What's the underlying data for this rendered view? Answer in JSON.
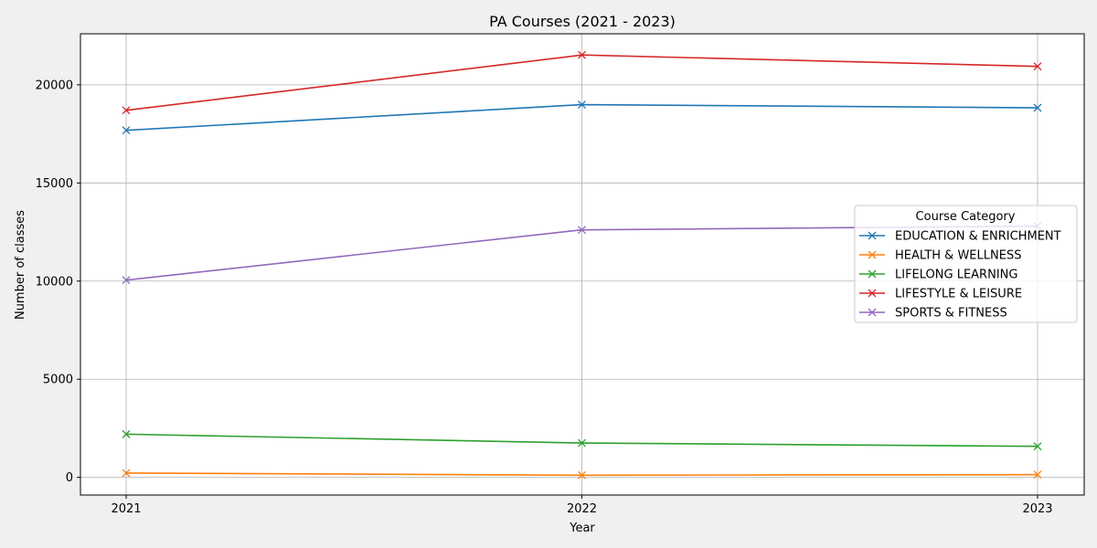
{
  "chart_data": {
    "type": "line",
    "title": "PA Courses (2021 - 2023)",
    "xlabel": "Year",
    "ylabel": "Number of classes",
    "x": [
      "2021",
      "2022",
      "2023"
    ],
    "ylim": [
      -900,
      22600
    ],
    "yticks": [
      0,
      5000,
      10000,
      15000,
      20000
    ],
    "grid": true,
    "legend": {
      "title": "Course Category",
      "placement": "center-right"
    },
    "marker": "x",
    "series": [
      {
        "name": "EDUCATION & ENRICHMENT",
        "color": "#1f77b4",
        "values": [
          17680,
          18990,
          18830
        ]
      },
      {
        "name": "HEALTH & WELLNESS",
        "color": "#ff7f0e",
        "values": [
          220,
          110,
          140
        ]
      },
      {
        "name": "LIFELONG LEARNING",
        "color": "#2ca02c",
        "values": [
          2200,
          1750,
          1580
        ]
      },
      {
        "name": "LIFESTYLE & LEISURE",
        "color": "#d62728",
        "values": [
          18700,
          21520,
          20940
        ]
      },
      {
        "name": "SPORTS & FITNESS",
        "color": "#9467bd",
        "values": [
          10050,
          12610,
          12800
        ]
      }
    ]
  }
}
